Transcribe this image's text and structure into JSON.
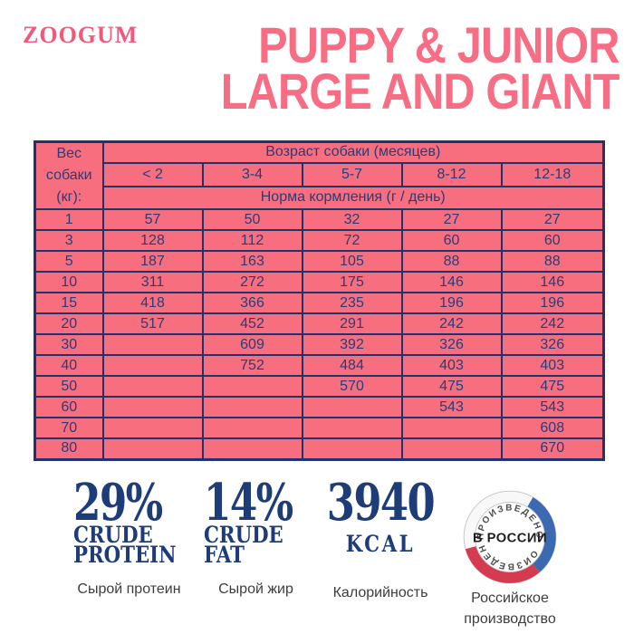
{
  "brand": {
    "logo": "ZOOGUM"
  },
  "title": {
    "line1": "PUPPY & JUNIOR",
    "line2": "LARGE AND GIANT"
  },
  "feeding_table": {
    "corner": {
      "line1": "Вес",
      "line2": "собаки",
      "line3": "(кг):"
    },
    "age_header": "Возраст собаки (месяцев)",
    "age_columns": [
      "< 2",
      "3-4",
      "5-7",
      "8-12",
      "12-18"
    ],
    "norm_header": "Норма кормления (г / день)",
    "rows": [
      {
        "weight": "1",
        "values": [
          "57",
          "50",
          "32",
          "27",
          "27"
        ]
      },
      {
        "weight": "3",
        "values": [
          "128",
          "112",
          "72",
          "60",
          "60"
        ]
      },
      {
        "weight": "5",
        "values": [
          "187",
          "163",
          "105",
          "88",
          "88"
        ]
      },
      {
        "weight": "10",
        "values": [
          "311",
          "272",
          "175",
          "146",
          "146"
        ]
      },
      {
        "weight": "15",
        "values": [
          "418",
          "366",
          "235",
          "196",
          "196"
        ]
      },
      {
        "weight": "20",
        "values": [
          "517",
          "452",
          "291",
          "242",
          "242"
        ]
      },
      {
        "weight": "30",
        "values": [
          "",
          "609",
          "392",
          "326",
          "326"
        ]
      },
      {
        "weight": "40",
        "values": [
          "",
          "752",
          "484",
          "403",
          "403"
        ]
      },
      {
        "weight": "50",
        "values": [
          "",
          "",
          "570",
          "475",
          "475"
        ]
      },
      {
        "weight": "60",
        "values": [
          "",
          "",
          "",
          "543",
          "543"
        ]
      },
      {
        "weight": "70",
        "values": [
          "",
          "",
          "",
          "",
          "608"
        ]
      },
      {
        "weight": "80",
        "values": [
          "",
          "",
          "",
          "",
          "670"
        ]
      }
    ]
  },
  "stats": {
    "protein": {
      "value": "29%",
      "sub1": "CRUDE",
      "sub2": "PROTEIN",
      "label": "Сырой протеин"
    },
    "fat": {
      "value": "14%",
      "sub1": "CRUDE",
      "sub2": "FAT",
      "label": "Сырой жир"
    },
    "kcal": {
      "value": "3940",
      "sub1": "KCAL",
      "label": "Калорийность"
    },
    "origin": {
      "label_line1": "Российское",
      "label_line2": "производство"
    }
  },
  "badge": {
    "top_text": "ПРОИЗВЕДЕНО",
    "center_text": "В РОССИИ",
    "bottom_text": "ПРОИЗВЕДЕНО"
  },
  "colors": {
    "brand_pink": "#f76e7e",
    "title_pink": "#f76d84",
    "table_navy": "#21336b",
    "stat_navy": "#1e3c78",
    "badge_blue": "#3c6ab2",
    "badge_red": "#d63a50"
  }
}
